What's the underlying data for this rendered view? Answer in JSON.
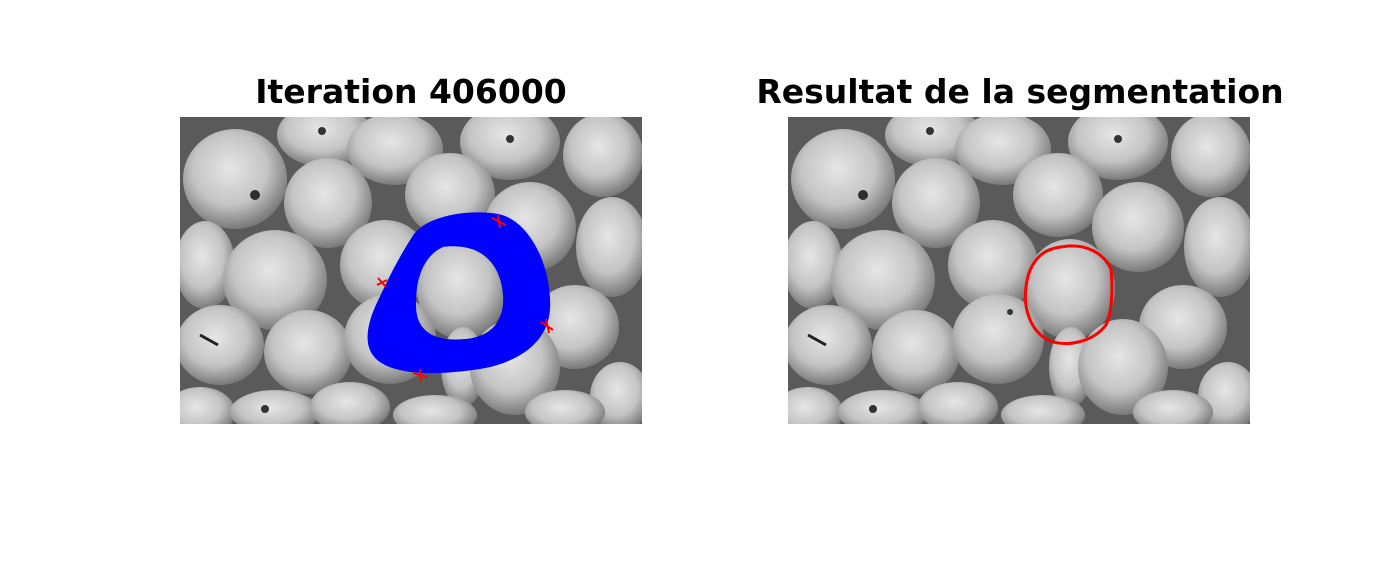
{
  "left_panel": {
    "title": "Iteration 406000"
  },
  "right_panel": {
    "title": "Resultat de la segmentation"
  },
  "colors": {
    "contour_evolution": "#0000ff",
    "markers": "#ff0000",
    "final_contour": "#ff0000"
  }
}
